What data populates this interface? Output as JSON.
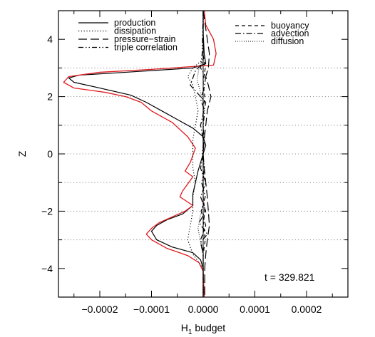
{
  "chart_data": {
    "type": "line",
    "title": "",
    "xlabel": "H",
    "xlabel_subscript": "1",
    "xlabel_suffix": " budget",
    "ylabel": "Z",
    "xlim": [
      -0.00028,
      0.00028
    ],
    "ylim": [
      -5,
      5
    ],
    "xticks": [
      -0.0002,
      -0.0001,
      0.0,
      0.0001,
      0.0002
    ],
    "xtick_labels": [
      "−0.0002",
      "−0.0001",
      "0.0000",
      "0.0001",
      "0.0002"
    ],
    "yticks": [
      -4,
      -2,
      0,
      2,
      4
    ],
    "ytick_labels": [
      "−4",
      "−2",
      "0",
      "2",
      "4"
    ],
    "grid": false,
    "reference_lines_y": [
      -3,
      -2,
      -1,
      0,
      1,
      2,
      3
    ],
    "annotation": "t = 329.821",
    "legend": {
      "placement": "top",
      "entries": [
        {
          "label": "production",
          "style": "solid"
        },
        {
          "label": "dissipation",
          "style": "dotted"
        },
        {
          "label": "pressure−strain",
          "style": "longdash"
        },
        {
          "label": "triple correlation",
          "style": "dashdotdot"
        },
        {
          "label": "buoyancy",
          "style": "dashed"
        },
        {
          "label": "advection",
          "style": "dashdot"
        },
        {
          "label": "diffusion",
          "style": "finedot"
        }
      ]
    },
    "series": [
      {
        "name": "production",
        "style": "solid",
        "color": "#000000",
        "points": [
          [
            0.0,
            5.0
          ],
          [
            0.0,
            4.2
          ],
          [
            2e-06,
            3.5
          ],
          [
            5e-06,
            3.15
          ],
          [
            -2e-05,
            3.0
          ],
          [
            -0.00015,
            2.85
          ],
          [
            -0.00024,
            2.75
          ],
          [
            -0.00026,
            2.65
          ],
          [
            -0.00025,
            2.5
          ],
          [
            -0.0002,
            2.3
          ],
          [
            -0.00014,
            2.05
          ],
          [
            -0.00011,
            1.8
          ],
          [
            -8e-05,
            1.5
          ],
          [
            -5e-05,
            1.2
          ],
          [
            -2e-05,
            0.9
          ],
          [
            0.0,
            0.6
          ],
          [
            5e-06,
            0.3
          ],
          [
            0.0,
            0.0
          ],
          [
            -5e-06,
            -0.3
          ],
          [
            -1e-05,
            -0.6
          ],
          [
            -1.5e-05,
            -1.0
          ],
          [
            -2e-05,
            -1.4
          ],
          [
            -2e-05,
            -1.8
          ],
          [
            -4e-05,
            -2.1
          ],
          [
            -7e-05,
            -2.3
          ],
          [
            -9e-05,
            -2.5
          ],
          [
            -0.0001,
            -2.7
          ],
          [
            -9e-05,
            -3.0
          ],
          [
            -6e-05,
            -3.25
          ],
          [
            -2e-05,
            -3.45
          ],
          [
            -5e-06,
            -3.7
          ],
          [
            0.0,
            -4.0
          ],
          [
            0.0,
            -5.0
          ]
        ]
      },
      {
        "name": "production (red)",
        "style": "solid",
        "color": "#e0191e",
        "points": [
          [
            2e-06,
            5.0
          ],
          [
            5e-06,
            4.5
          ],
          [
            2e-05,
            4.0
          ],
          [
            2.5e-05,
            3.5
          ],
          [
            2e-05,
            3.1
          ],
          [
            -0.0001,
            2.95
          ],
          [
            -0.0002,
            2.85
          ],
          [
            -0.00026,
            2.7
          ],
          [
            -0.00027,
            2.5
          ],
          [
            -0.00025,
            2.3
          ],
          [
            -0.00019,
            2.15
          ],
          [
            -0.00015,
            2.0
          ],
          [
            -0.00012,
            1.8
          ],
          [
            -0.0001,
            1.5
          ],
          [
            -6e-05,
            1.1
          ],
          [
            -3e-05,
            0.6
          ],
          [
            -1.5e-05,
            0.2
          ],
          [
            -2.5e-05,
            -0.3
          ],
          [
            -3.5e-05,
            -0.6
          ],
          [
            -2e-05,
            -0.8
          ],
          [
            -4e-05,
            -1.3
          ],
          [
            -4.5e-05,
            -1.5
          ],
          [
            -2e-05,
            -1.8
          ],
          [
            -3.5e-05,
            -2.0
          ],
          [
            -6e-05,
            -2.2
          ],
          [
            -8.5e-05,
            -2.4
          ],
          [
            -0.0001,
            -2.6
          ],
          [
            -0.00011,
            -2.8
          ],
          [
            -0.0001,
            -3.0
          ],
          [
            -7e-05,
            -3.3
          ],
          [
            -3e-05,
            -3.55
          ],
          [
            -8e-06,
            -3.8
          ],
          [
            0.0,
            -4.1
          ],
          [
            2e-06,
            -5.0
          ]
        ]
      },
      {
        "name": "dissipation",
        "style": "dotted",
        "color": "#000000",
        "points": [
          [
            0.0,
            5.0
          ],
          [
            0.0,
            3.3
          ],
          [
            -2e-05,
            3.0
          ],
          [
            -3e-05,
            2.7
          ],
          [
            -2e-05,
            2.4
          ],
          [
            -1.5e-05,
            2.0
          ],
          [
            -1e-05,
            1.5
          ],
          [
            -1.5e-05,
            1.0
          ],
          [
            -2e-05,
            0.5
          ],
          [
            -2e-05,
            0.0
          ],
          [
            -2e-05,
            -0.5
          ],
          [
            -1.5e-05,
            -1.0
          ],
          [
            -2e-05,
            -1.5
          ],
          [
            -2e-05,
            -2.0
          ],
          [
            -2.5e-05,
            -2.5
          ],
          [
            -3e-05,
            -3.0
          ],
          [
            -2e-05,
            -3.5
          ],
          [
            0.0,
            -4.0
          ],
          [
            0.0,
            -5.0
          ]
        ]
      },
      {
        "name": "pressure−strain",
        "style": "longdash",
        "color": "#000000",
        "points": [
          [
            0.0,
            5.0
          ],
          [
            8e-06,
            4.0
          ],
          [
            1.2e-05,
            3.5
          ],
          [
            1e-05,
            3.0
          ],
          [
            5e-06,
            2.7
          ],
          [
            1e-05,
            2.4
          ],
          [
            1.5e-05,
            2.0
          ],
          [
            8e-06,
            1.5
          ],
          [
            5e-06,
            1.0
          ],
          [
            2e-06,
            0.5
          ],
          [
            0.0,
            0.0
          ],
          [
            2e-06,
            -0.5
          ],
          [
            5e-06,
            -1.0
          ],
          [
            8e-06,
            -1.5
          ],
          [
            1e-05,
            -2.0
          ],
          [
            1.2e-05,
            -2.5
          ],
          [
            8e-06,
            -3.0
          ],
          [
            5e-06,
            -3.5
          ],
          [
            3e-06,
            -4.0
          ],
          [
            3e-06,
            -5.0
          ]
        ]
      },
      {
        "name": "triple correlation",
        "style": "dashdotdot",
        "color": "#000000",
        "points": [
          [
            0.0,
            5.0
          ],
          [
            -2e-06,
            3.5
          ],
          [
            -5e-06,
            3.0
          ],
          [
            5e-06,
            2.7
          ],
          [
            2e-06,
            2.3
          ],
          [
            -5e-06,
            1.9
          ],
          [
            3e-06,
            1.5
          ],
          [
            0.0,
            1.0
          ],
          [
            2e-06,
            0.5
          ],
          [
            -2e-06,
            0.0
          ],
          [
            3e-06,
            -0.5
          ],
          [
            -3e-06,
            -1.0
          ],
          [
            4e-06,
            -1.5
          ],
          [
            -4e-06,
            -2.0
          ],
          [
            5e-06,
            -2.5
          ],
          [
            -5e-06,
            -3.0
          ],
          [
            0.0,
            -3.5
          ],
          [
            0.0,
            -5.0
          ]
        ]
      },
      {
        "name": "buoyancy",
        "style": "dashed",
        "color": "#000000",
        "points": [
          [
            0.0,
            5.0
          ],
          [
            0.0,
            3.5
          ],
          [
            4e-06,
            3.0
          ],
          [
            0.0,
            2.5
          ],
          [
            3e-06,
            2.0
          ],
          [
            0.0,
            1.5
          ],
          [
            0.0,
            0.0
          ],
          [
            0.0,
            -1.5
          ],
          [
            3e-06,
            -2.0
          ],
          [
            0.0,
            -2.5
          ],
          [
            4e-06,
            -3.0
          ],
          [
            0.0,
            -3.5
          ],
          [
            0.0,
            -5.0
          ]
        ]
      },
      {
        "name": "advection",
        "style": "dashdot",
        "color": "#000000",
        "points": [
          [
            0.0,
            5.0
          ],
          [
            0.0,
            3.2
          ],
          [
            -1.5e-05,
            2.9
          ],
          [
            -2.5e-05,
            2.4
          ],
          [
            -1e-05,
            2.1
          ],
          [
            5e-06,
            1.8
          ],
          [
            0.0,
            1.4
          ],
          [
            -5e-06,
            1.0
          ],
          [
            0.0,
            0.5
          ],
          [
            0.0,
            0.0
          ],
          [
            -5e-06,
            -0.5
          ],
          [
            5e-06,
            -1.0
          ],
          [
            -5e-06,
            -1.5
          ],
          [
            5e-06,
            -2.0
          ],
          [
            -8e-06,
            -2.4
          ],
          [
            8e-06,
            -2.8
          ],
          [
            -5e-06,
            -3.1
          ],
          [
            0.0,
            -3.5
          ],
          [
            0.0,
            -5.0
          ]
        ]
      },
      {
        "name": "diffusion",
        "style": "finedot",
        "color": "#000000",
        "points": [
          [
            0.0,
            5.0
          ],
          [
            0.0,
            3.3
          ],
          [
            -8e-06,
            3.0
          ],
          [
            -1.2e-05,
            2.6
          ],
          [
            -6e-06,
            2.2
          ],
          [
            0.0,
            1.8
          ],
          [
            0.0,
            0.0
          ],
          [
            0.0,
            -1.8
          ],
          [
            -6e-06,
            -2.2
          ],
          [
            -1e-05,
            -2.6
          ],
          [
            -6e-06,
            -3.0
          ],
          [
            0.0,
            -3.4
          ],
          [
            0.0,
            -5.0
          ]
        ]
      }
    ]
  }
}
